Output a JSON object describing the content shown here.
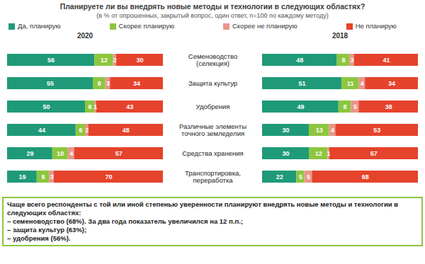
{
  "chart_data": {
    "type": "bar",
    "title": "Планируете ли вы внедрять новые методы и технологии в следующих областях?",
    "subtitle": "(в % от опрошенных, закрытый вопрос, один ответ, n=100 по каждому методу)",
    "orientation": "horizontal",
    "stacked": true,
    "data_labels": true,
    "tick_labels": "y",
    "legend": "top",
    "xlim": [
      0,
      100
    ],
    "categories": [
      "Семеноводство\n(селекция)",
      "Защита культур",
      "Удобрения",
      "Различные элементы\nточного земледелия",
      "Средства хранения",
      "Транспортировка,\nпереработка"
    ],
    "panels": [
      {
        "title": "2020",
        "series": [
          {
            "name": "Да, планирую",
            "color": "#1f9a78",
            "values": [
              56,
              55,
              50,
              44,
              29,
              19
            ]
          },
          {
            "name": "Скорее планирую",
            "color": "#8dc63f",
            "values": [
              12,
              8,
              6,
              6,
              10,
              8
            ]
          },
          {
            "name": "Скорее не планирую",
            "color": "#e8968a",
            "values": [
              2,
              3,
              1,
              2,
              4,
              3
            ]
          },
          {
            "name": "Не планирую",
            "color": "#e5432b",
            "values": [
              30,
              34,
              43,
              48,
              57,
              70
            ]
          }
        ]
      },
      {
        "title": "2018",
        "series": [
          {
            "name": "Да, планирую",
            "color": "#1f9a78",
            "values": [
              48,
              51,
              49,
              30,
              30,
              22
            ]
          },
          {
            "name": "Скорее планирую",
            "color": "#8dc63f",
            "values": [
              8,
              11,
              8,
              13,
              12,
              5
            ]
          },
          {
            "name": "Скорее не планирую",
            "color": "#e8968a",
            "values": [
              3,
              4,
              5,
              4,
              1,
              5
            ]
          },
          {
            "name": "Не планирую",
            "color": "#e5432b",
            "values": [
              41,
              34,
              38,
              53,
              57,
              68
            ]
          }
        ]
      }
    ]
  },
  "annotation": {
    "heading": "Чаще всего респонденты с той или иной степенью уверенности планируют внедрять новые методы и технологии в следующих областях:",
    "items": [
      "– семеноводство (68%). За два года показатель увеличился на 12 п.п.;",
      "– защита культур (63%);",
      "– удобрения (56%)."
    ]
  }
}
